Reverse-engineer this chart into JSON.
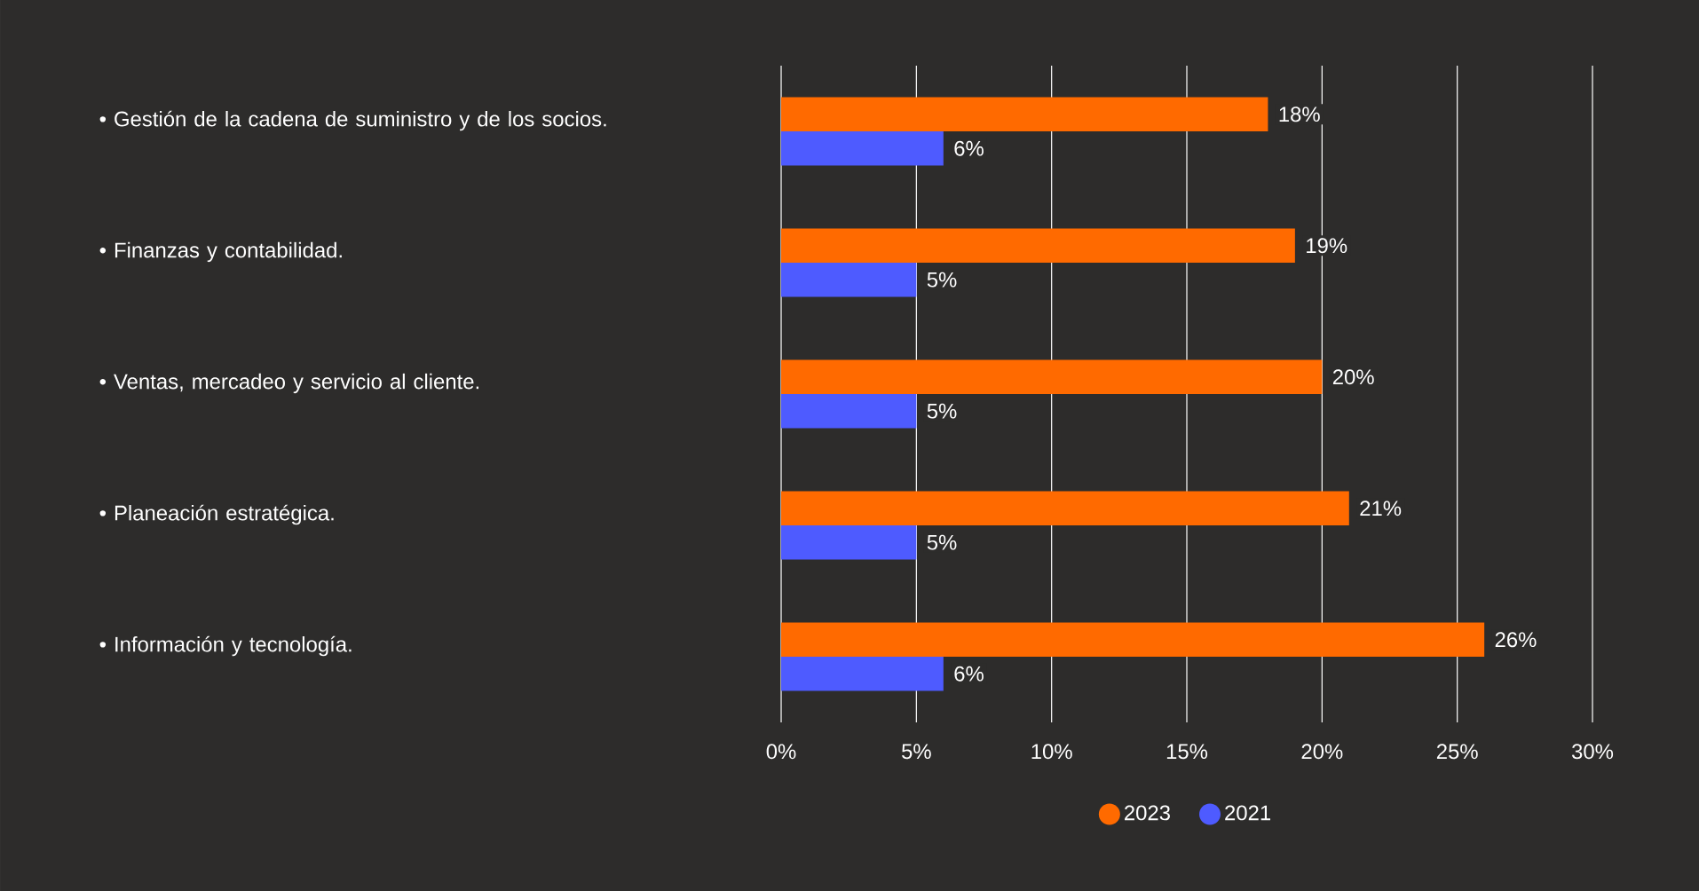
{
  "chart_data": {
    "type": "bar",
    "orientation": "horizontal",
    "categories": [
      "• Gestión de la cadena de suministro y de los socios.",
      "• Finanzas y contabilidad.",
      "• Ventas, mercadeo y servicio al cliente.",
      "• Planeación estratégica.",
      "• Información y tecnología."
    ],
    "series": [
      {
        "name": "2023",
        "color": "#ff6a00",
        "values": [
          18,
          19,
          20,
          21,
          26
        ],
        "value_labels": [
          "18%",
          "19%",
          "20%",
          "21%",
          "26%"
        ]
      },
      {
        "name": "2021",
        "color": "#4e5bff",
        "values": [
          6,
          5,
          5,
          5,
          6
        ],
        "value_labels": [
          "6%",
          "5%",
          "5%",
          "5%",
          "6%"
        ]
      }
    ],
    "xlim": [
      0,
      30
    ],
    "xticks": [
      {
        "value": 0,
        "label": "0%"
      },
      {
        "value": 5,
        "label": "5%"
      },
      {
        "value": 10,
        "label": "10%"
      },
      {
        "value": 15,
        "label": "15%"
      },
      {
        "value": 20,
        "label": "20%"
      },
      {
        "value": 25,
        "label": "25%"
      },
      {
        "value": 30,
        "label": "30%"
      }
    ],
    "grid": "x",
    "legend": "bottom"
  }
}
